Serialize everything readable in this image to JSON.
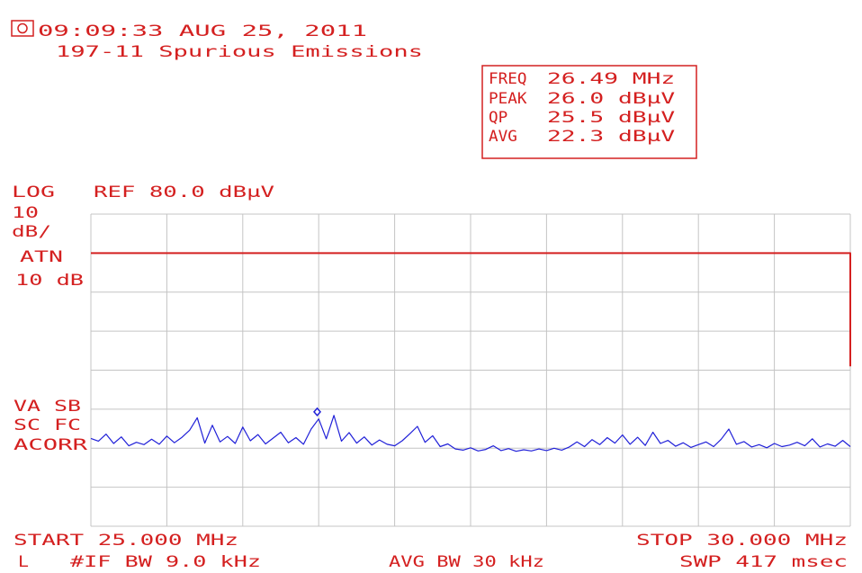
{
  "chart_data": {
    "type": "line",
    "timestamp": "09:09:33 AUG 25, 2011",
    "title": "197-11 Spurious Emissions",
    "readout": [
      [
        "FREQ",
        "26.49 MHz"
      ],
      [
        "PEAK",
        "26.0 dBµV"
      ],
      [
        "QP",
        "25.5 dBµV"
      ],
      [
        "AVG",
        "22.3 dBµV"
      ]
    ],
    "scale_label": "LOG",
    "ref_label": "REF 80.0 dBµV",
    "scale_div": [
      "10",
      "dB/"
    ],
    "atten": [
      "ATN",
      "10 dB"
    ],
    "status": [
      "VA SB",
      "SC FC",
      "ACORR"
    ],
    "start_label": "START 25.000 MHz",
    "stop_label": "STOP 30.000 MHz",
    "footer": [
      "L",
      "#IF BW 9.0 kHz",
      "AVG BW 30 kHz",
      "SWP 417 msec"
    ],
    "xlim": [
      25,
      30
    ],
    "ylim": [
      0,
      80
    ],
    "xticks": [
      25,
      25.5,
      26,
      26.5,
      27,
      27.5,
      28,
      28.5,
      29,
      29.5,
      30
    ],
    "yticks": [
      0,
      10,
      20,
      30,
      40,
      50,
      60,
      70,
      80
    ],
    "grid": true,
    "series": [
      {
        "color": "#d42020",
        "x": [
          25,
          30,
          30
        ],
        "values": [
          70,
          70,
          41
        ]
      },
      {
        "color": "#2020d8",
        "x": [
          25.0,
          25.05,
          25.1,
          25.15,
          25.2,
          25.25,
          25.3,
          25.35,
          25.4,
          25.45,
          25.5,
          25.55,
          25.6,
          25.65,
          25.7,
          25.75,
          25.8,
          25.85,
          25.9,
          25.95,
          26.0,
          26.05,
          26.1,
          26.15,
          26.2,
          26.25,
          26.3,
          26.35,
          26.4,
          26.45,
          26.5,
          26.55,
          26.6,
          26.65,
          26.7,
          26.75,
          26.8,
          26.85,
          26.9,
          26.95,
          27.0,
          27.05,
          27.1,
          27.15,
          27.2,
          27.25,
          27.3,
          27.35,
          27.4,
          27.45,
          27.5,
          27.55,
          27.6,
          27.65,
          27.7,
          27.75,
          27.8,
          27.85,
          27.9,
          27.95,
          28.0,
          28.05,
          28.1,
          28.15,
          28.2,
          28.25,
          28.3,
          28.35,
          28.4,
          28.45,
          28.5,
          28.55,
          28.6,
          28.65,
          28.7,
          28.75,
          28.8,
          28.85,
          28.9,
          28.95,
          29.0,
          29.05,
          29.1,
          29.15,
          29.2,
          29.25,
          29.3,
          29.35,
          29.4,
          29.45,
          29.5,
          29.55,
          29.6,
          29.65,
          29.7,
          29.75,
          29.8,
          29.85,
          29.9,
          29.95,
          30.0
        ],
        "values": [
          22.5,
          21.8,
          23.6,
          21.2,
          22.9,
          20.6,
          21.5,
          20.9,
          22.3,
          21.0,
          23.1,
          21.4,
          22.8,
          24.6,
          27.8,
          21.3,
          25.9,
          21.6,
          23.0,
          21.2,
          25.4,
          21.9,
          23.5,
          21.1,
          22.6,
          24.1,
          21.4,
          22.7,
          21.0,
          24.9,
          27.5,
          22.4,
          28.4,
          21.8,
          24.0,
          21.3,
          22.9,
          20.8,
          22.1,
          21.0,
          20.6,
          21.9,
          23.7,
          25.6,
          21.5,
          23.2,
          20.4,
          21.1,
          19.8,
          19.5,
          20.1,
          19.3,
          19.7,
          20.6,
          19.4,
          19.9,
          19.2,
          19.6,
          19.3,
          19.8,
          19.4,
          20.0,
          19.5,
          20.3,
          21.6,
          20.4,
          22.2,
          20.9,
          22.7,
          21.3,
          23.4,
          21.0,
          22.8,
          20.7,
          24.1,
          21.2,
          22.0,
          20.5,
          21.4,
          20.2,
          20.9,
          21.6,
          20.4,
          22.3,
          24.9,
          21.0,
          21.7,
          20.3,
          20.9,
          20.1,
          21.2,
          20.4,
          20.8,
          21.5,
          20.6,
          22.4,
          20.3,
          21.1,
          20.5,
          22.0,
          20.4
        ]
      }
    ],
    "marker": {
      "x": 26.49,
      "value": 29.3
    }
  }
}
